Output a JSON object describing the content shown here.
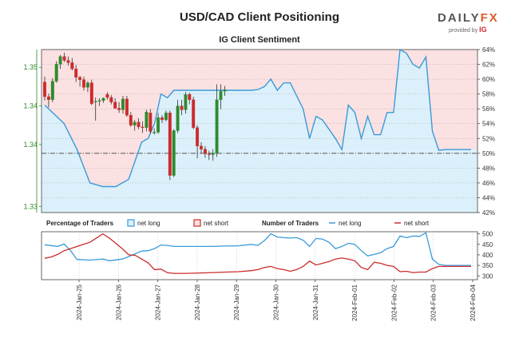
{
  "header": {
    "title": "USD/CAD Client Positioning",
    "subtitle": "IG Client Sentiment",
    "logo_text_main": "DAILY",
    "logo_text_accent": "FX",
    "logo_provided": "provided by",
    "logo_ig": "IG"
  },
  "colors": {
    "long": "#3a9ad9",
    "short": "#cc2b2b",
    "up_candle": "#2e8b2e",
    "down_candle": "#cc2b2b",
    "long_fill": "#dcf0fb",
    "short_fill": "#fbe1e1"
  },
  "chart_data": [
    {
      "type": "candlestick",
      "title": "USD/CAD Client Positioning",
      "subtitle": "IG Client Sentiment",
      "y_left_ticks": [
        "1.33",
        "1.34",
        "1.34",
        "1.35"
      ],
      "y_left_tick_values": [
        1.33,
        1.338,
        1.343,
        1.348
      ],
      "ylim_left": [
        1.3292,
        1.3503
      ],
      "y_right_ticks": [
        "42%",
        "44%",
        "46%",
        "48%",
        "50%",
        "52%",
        "54%",
        "56%",
        "58%",
        "60%",
        "62%",
        "64%"
      ],
      "ylim_right": [
        42,
        64
      ],
      "neutral_level": "50%",
      "candles": [
        {
          "o": 1.3461,
          "h": 1.3468,
          "l": 1.3437,
          "c": 1.3442
        },
        {
          "o": 1.3442,
          "h": 1.3446,
          "l": 1.3428,
          "c": 1.3438
        },
        {
          "o": 1.3438,
          "h": 1.3466,
          "l": 1.3435,
          "c": 1.3462
        },
        {
          "o": 1.3462,
          "h": 1.3488,
          "l": 1.346,
          "c": 1.3484
        },
        {
          "o": 1.3484,
          "h": 1.3496,
          "l": 1.3478,
          "c": 1.3494
        },
        {
          "o": 1.3494,
          "h": 1.3499,
          "l": 1.3487,
          "c": 1.3489
        },
        {
          "o": 1.3489,
          "h": 1.3494,
          "l": 1.3482,
          "c": 1.3486
        },
        {
          "o": 1.3486,
          "h": 1.3492,
          "l": 1.3476,
          "c": 1.3478
        },
        {
          "o": 1.3478,
          "h": 1.3483,
          "l": 1.3461,
          "c": 1.3467
        },
        {
          "o": 1.3467,
          "h": 1.3469,
          "l": 1.3455,
          "c": 1.3464
        },
        {
          "o": 1.3464,
          "h": 1.3468,
          "l": 1.345,
          "c": 1.3454
        },
        {
          "o": 1.3454,
          "h": 1.3462,
          "l": 1.3448,
          "c": 1.346
        },
        {
          "o": 1.346,
          "h": 1.3464,
          "l": 1.3431,
          "c": 1.3433
        },
        {
          "o": 1.3435,
          "h": 1.3441,
          "l": 1.3411,
          "c": 1.3436
        },
        {
          "o": 1.3436,
          "h": 1.344,
          "l": 1.343,
          "c": 1.3437
        },
        {
          "o": 1.3437,
          "h": 1.3441,
          "l": 1.3434,
          "c": 1.344
        },
        {
          "o": 1.3445,
          "h": 1.3448,
          "l": 1.3438,
          "c": 1.3441
        },
        {
          "o": 1.3441,
          "h": 1.3444,
          "l": 1.3432,
          "c": 1.3435
        },
        {
          "o": 1.3435,
          "h": 1.344,
          "l": 1.3426,
          "c": 1.3427
        },
        {
          "o": 1.3427,
          "h": 1.3435,
          "l": 1.3421,
          "c": 1.3425
        },
        {
          "o": 1.3425,
          "h": 1.3443,
          "l": 1.342,
          "c": 1.3439
        },
        {
          "o": 1.3439,
          "h": 1.3443,
          "l": 1.3416,
          "c": 1.3418
        },
        {
          "o": 1.3418,
          "h": 1.3422,
          "l": 1.3403,
          "c": 1.3405
        },
        {
          "o": 1.3405,
          "h": 1.3412,
          "l": 1.3398,
          "c": 1.3409
        },
        {
          "o": 1.3409,
          "h": 1.3414,
          "l": 1.34,
          "c": 1.3403
        },
        {
          "o": 1.3403,
          "h": 1.341,
          "l": 1.3395,
          "c": 1.3402
        },
        {
          "o": 1.3402,
          "h": 1.3425,
          "l": 1.3397,
          "c": 1.3422
        },
        {
          "o": 1.3421,
          "h": 1.3426,
          "l": 1.3394,
          "c": 1.3397
        },
        {
          "o": 1.3396,
          "h": 1.3401,
          "l": 1.3393,
          "c": 1.3396
        },
        {
          "o": 1.3396,
          "h": 1.3421,
          "l": 1.3394,
          "c": 1.3415
        },
        {
          "o": 1.3415,
          "h": 1.3418,
          "l": 1.3408,
          "c": 1.3412
        },
        {
          "o": 1.3412,
          "h": 1.3424,
          "l": 1.341,
          "c": 1.3421
        },
        {
          "o": 1.3421,
          "h": 1.3424,
          "l": 1.3334,
          "c": 1.334
        },
        {
          "o": 1.334,
          "h": 1.34,
          "l": 1.3338,
          "c": 1.3398
        },
        {
          "o": 1.3398,
          "h": 1.3438,
          "l": 1.3395,
          "c": 1.343
        },
        {
          "o": 1.343,
          "h": 1.3438,
          "l": 1.3418,
          "c": 1.3425
        },
        {
          "o": 1.3425,
          "h": 1.3448,
          "l": 1.342,
          "c": 1.3445
        },
        {
          "o": 1.3445,
          "h": 1.3447,
          "l": 1.3432,
          "c": 1.3438
        },
        {
          "o": 1.3438,
          "h": 1.3442,
          "l": 1.34,
          "c": 1.3402
        },
        {
          "o": 1.3402,
          "h": 1.3405,
          "l": 1.3362,
          "c": 1.3378
        },
        {
          "o": 1.3378,
          "h": 1.3383,
          "l": 1.3369,
          "c": 1.3374
        },
        {
          "o": 1.3374,
          "h": 1.3378,
          "l": 1.3363,
          "c": 1.3368
        },
        {
          "o": 1.3368,
          "h": 1.3372,
          "l": 1.336,
          "c": 1.3367
        },
        {
          "o": 1.3367,
          "h": 1.3374,
          "l": 1.3359,
          "c": 1.3369
        },
        {
          "o": 1.3369,
          "h": 1.3458,
          "l": 1.3364,
          "c": 1.3438
        },
        {
          "o": 1.3438,
          "h": 1.3458,
          "l": 1.3426,
          "c": 1.3449
        },
        {
          "o": 1.3449,
          "h": 1.3456,
          "l": 1.3443,
          "c": 1.3451
        }
      ],
      "net_long_pct": [
        [
          0,
          56.5
        ],
        [
          3,
          54.0
        ],
        [
          5,
          50.5
        ],
        [
          7,
          46.0
        ],
        [
          9,
          45.5
        ],
        [
          11,
          45.5
        ],
        [
          13,
          46.5
        ],
        [
          14,
          49.0
        ],
        [
          15,
          51.5
        ],
        [
          16,
          52.0
        ],
        [
          17,
          54.0
        ],
        [
          18,
          58.0
        ],
        [
          19,
          57.5
        ],
        [
          20,
          58.5
        ],
        [
          21,
          58.5
        ],
        [
          22,
          58.5
        ],
        [
          24,
          58.5
        ],
        [
          26,
          58.5
        ],
        [
          28,
          58.5
        ],
        [
          30,
          58.5
        ],
        [
          32,
          58.5
        ],
        [
          33,
          58.6
        ],
        [
          34,
          59.0
        ],
        [
          35,
          60.0
        ],
        [
          36,
          58.5
        ],
        [
          37,
          59.5
        ],
        [
          38,
          59.5
        ],
        [
          40,
          56.0
        ],
        [
          41,
          52.0
        ],
        [
          42,
          55.0
        ],
        [
          43,
          54.5
        ],
        [
          45,
          52.0
        ],
        [
          46,
          50.5
        ],
        [
          47,
          56.5
        ],
        [
          48,
          55.5
        ],
        [
          49,
          52.0
        ],
        [
          50,
          55.0
        ],
        [
          51,
          52.5
        ],
        [
          52,
          52.5
        ],
        [
          53,
          55.5
        ],
        [
          54,
          55.5
        ],
        [
          55,
          64.0
        ],
        [
          56,
          63.5
        ],
        [
          57,
          62.0
        ],
        [
          58,
          61.5
        ],
        [
          59,
          63.0
        ],
        [
          60,
          53.0
        ],
        [
          61,
          50.4
        ],
        [
          62,
          50.5
        ],
        [
          63,
          50.5
        ],
        [
          64,
          50.5
        ],
        [
          65,
          50.5
        ],
        [
          66,
          50.5
        ]
      ],
      "neutral_pct": 50
    },
    {
      "type": "line",
      "legend": {
        "pct_title": "Percentage of Traders",
        "pct_long": "net long",
        "pct_short": "net short",
        "num_title": "Number of Traders",
        "num_long": "net long",
        "num_short": "net short"
      },
      "y_ticks": [
        "300",
        "350",
        "400",
        "450",
        "500"
      ],
      "ylim": [
        282,
        510
      ],
      "x_ticks": [
        "2024-Jan-25",
        "2024-Jan-26",
        "2024-Jan-27",
        "2024-Jan-28",
        "2024-Jan-29",
        "2024-Jan-30",
        "2024-Jan-31",
        "2024-Feb-01",
        "2024-Feb-02",
        "2024-Feb-03",
        "2024-Feb-04"
      ],
      "series": [
        {
          "name": "net long",
          "values": [
            [
              0,
              448
            ],
            [
              2,
              440
            ],
            [
              3,
              452
            ],
            [
              4,
              420
            ],
            [
              5,
              378
            ],
            [
              7,
              375
            ],
            [
              9,
              380
            ],
            [
              10,
              372
            ],
            [
              12,
              380
            ],
            [
              13,
              392
            ],
            [
              14,
              405
            ],
            [
              15,
              418
            ],
            [
              16,
              420
            ],
            [
              17,
              430
            ],
            [
              18,
              447
            ],
            [
              19,
              445
            ],
            [
              20,
              440
            ],
            [
              22,
              440
            ],
            [
              24,
              440
            ],
            [
              26,
              440
            ],
            [
              28,
              442
            ],
            [
              30,
              443
            ],
            [
              32,
              450
            ],
            [
              33,
              445
            ],
            [
              34,
              468
            ],
            [
              35,
              500
            ],
            [
              36,
              485
            ],
            [
              37,
              482
            ],
            [
              38,
              480
            ],
            [
              39,
              482
            ],
            [
              40,
              470
            ],
            [
              41,
              440
            ],
            [
              42,
              478
            ],
            [
              43,
              475
            ],
            [
              44,
              460
            ],
            [
              45,
              430
            ],
            [
              46,
              440
            ],
            [
              47,
              455
            ],
            [
              48,
              450
            ],
            [
              49,
              420
            ],
            [
              50,
              395
            ],
            [
              51,
              402
            ],
            [
              52,
              410
            ],
            [
              53,
              430
            ],
            [
              54,
              440
            ],
            [
              55,
              490
            ],
            [
              56,
              482
            ],
            [
              57,
              490
            ],
            [
              58,
              488
            ],
            [
              59,
              505
            ],
            [
              60,
              380
            ],
            [
              61,
              355
            ],
            [
              62,
              350
            ],
            [
              63,
              350
            ],
            [
              64,
              350
            ],
            [
              65,
              350
            ],
            [
              66,
              350
            ]
          ]
        },
        {
          "name": "net short",
          "values": [
            [
              0,
              384
            ],
            [
              1,
              390
            ],
            [
              2,
              402
            ],
            [
              3,
              420
            ],
            [
              4,
              430
            ],
            [
              5,
              440
            ],
            [
              6,
              450
            ],
            [
              7,
              460
            ],
            [
              8,
              480
            ],
            [
              9,
              500
            ],
            [
              10,
              480
            ],
            [
              11,
              455
            ],
            [
              12,
              430
            ],
            [
              13,
              400
            ],
            [
              14,
              398
            ],
            [
              15,
              380
            ],
            [
              16,
              362
            ],
            [
              17,
              330
            ],
            [
              18,
              332
            ],
            [
              19,
              315
            ],
            [
              20,
              312
            ],
            [
              22,
              312
            ],
            [
              24,
              314
            ],
            [
              26,
              316
            ],
            [
              28,
              318
            ],
            [
              30,
              320
            ],
            [
              32,
              325
            ],
            [
              33,
              330
            ],
            [
              34,
              340
            ],
            [
              35,
              345
            ],
            [
              36,
              335
            ],
            [
              37,
              330
            ],
            [
              38,
              322
            ],
            [
              39,
              330
            ],
            [
              40,
              345
            ],
            [
              41,
              370
            ],
            [
              42,
              352
            ],
            [
              43,
              360
            ],
            [
              44,
              368
            ],
            [
              45,
              380
            ],
            [
              46,
              385
            ],
            [
              47,
              380
            ],
            [
              48,
              372
            ],
            [
              49,
              340
            ],
            [
              50,
              330
            ],
            [
              51,
              365
            ],
            [
              52,
              360
            ],
            [
              53,
              350
            ],
            [
              54,
              345
            ],
            [
              55,
              320
            ],
            [
              56,
              322
            ],
            [
              57,
              316
            ],
            [
              58,
              318
            ],
            [
              59,
              318
            ],
            [
              60,
              335
            ],
            [
              61,
              345
            ],
            [
              62,
              345
            ],
            [
              63,
              345
            ],
            [
              64,
              345
            ],
            [
              65,
              345
            ],
            [
              66,
              345
            ]
          ]
        }
      ]
    }
  ]
}
